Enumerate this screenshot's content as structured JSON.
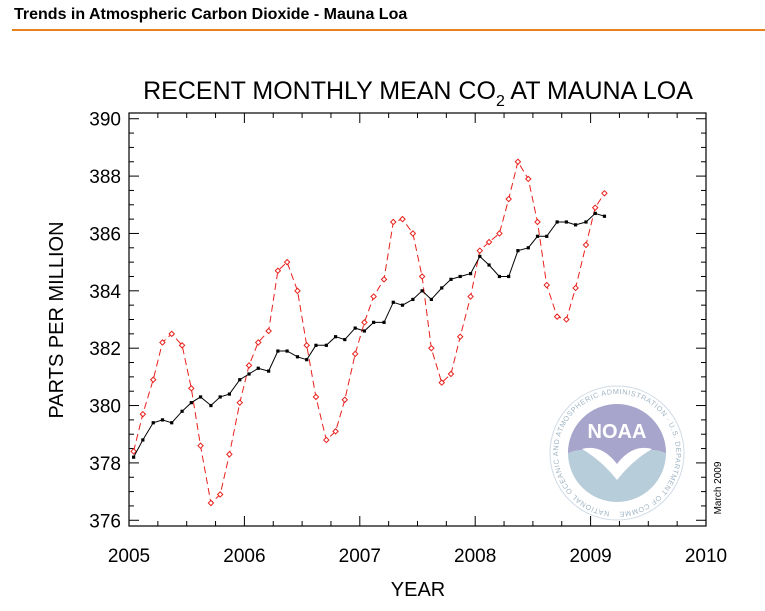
{
  "page": {
    "header_title": "Trends in Atmospheric Carbon Dioxide - Mauna Loa",
    "accent_color": "#e8821e"
  },
  "chart_data": {
    "type": "line",
    "title_main": "RECENT MONTHLY MEAN CO",
    "title_subscript": "2",
    "title_suffix": " AT MAUNA LOA",
    "xlabel": "YEAR",
    "ylabel": "PARTS PER MILLION",
    "xlim": [
      2005,
      2010
    ],
    "ylim": [
      375.8,
      390.2
    ],
    "x_ticks": [
      2005,
      2006,
      2007,
      2008,
      2009,
      2010
    ],
    "x_tick_labels": [
      "2005",
      "2006",
      "2007",
      "2008",
      "2009",
      "2010"
    ],
    "y_ticks": [
      376,
      378,
      380,
      382,
      384,
      386,
      388,
      390
    ],
    "y_tick_labels": [
      "376",
      "378",
      "380",
      "382",
      "384",
      "386",
      "388",
      "390"
    ],
    "annotation": "March 2009",
    "logo_text": "NOAA",
    "logo_ring_text": "NATIONAL OCEANIC AND ATMOSPHERIC ADMINISTRATION · U.S. DEPARTMENT OF COMMERCE",
    "series": [
      {
        "style": "monthly-mean",
        "color": "#e8201c",
        "line": "dashed",
        "marker": "diamond",
        "x": [
          2005.04,
          2005.12,
          2005.21,
          2005.29,
          2005.37,
          2005.46,
          2005.54,
          2005.62,
          2005.71,
          2005.79,
          2005.87,
          2005.96,
          2006.04,
          2006.12,
          2006.21,
          2006.29,
          2006.37,
          2006.46,
          2006.54,
          2006.62,
          2006.71,
          2006.79,
          2006.87,
          2006.96,
          2007.04,
          2007.12,
          2007.21,
          2007.29,
          2007.37,
          2007.46,
          2007.54,
          2007.62,
          2007.71,
          2007.79,
          2007.87,
          2007.96,
          2008.04,
          2008.12,
          2008.21,
          2008.29,
          2008.37,
          2008.46,
          2008.54,
          2008.62,
          2008.71,
          2008.79,
          2008.87,
          2008.96,
          2009.04,
          2009.12
        ],
        "y": [
          378.4,
          379.7,
          380.9,
          382.2,
          382.5,
          382.1,
          380.6,
          378.6,
          376.6,
          376.9,
          378.3,
          380.1,
          381.4,
          382.2,
          382.6,
          384.7,
          385.0,
          384.0,
          382.1,
          380.3,
          378.8,
          379.1,
          380.2,
          381.8,
          382.9,
          383.8,
          384.4,
          386.4,
          386.5,
          386.0,
          384.5,
          382.0,
          380.8,
          381.1,
          382.4,
          383.8,
          385.4,
          385.7,
          386.0,
          387.2,
          388.5,
          387.9,
          386.4,
          384.2,
          383.1,
          383.0,
          384.1,
          385.6,
          386.9,
          387.4
        ]
      },
      {
        "style": "seasonally-corrected",
        "color": "#000000",
        "line": "solid",
        "marker": "square",
        "x": [
          2005.04,
          2005.12,
          2005.21,
          2005.29,
          2005.37,
          2005.46,
          2005.54,
          2005.62,
          2005.71,
          2005.79,
          2005.87,
          2005.96,
          2006.04,
          2006.12,
          2006.21,
          2006.29,
          2006.37,
          2006.46,
          2006.54,
          2006.62,
          2006.71,
          2006.79,
          2006.87,
          2006.96,
          2007.04,
          2007.12,
          2007.21,
          2007.29,
          2007.37,
          2007.46,
          2007.54,
          2007.62,
          2007.71,
          2007.79,
          2007.87,
          2007.96,
          2008.04,
          2008.12,
          2008.21,
          2008.29,
          2008.37,
          2008.46,
          2008.54,
          2008.62,
          2008.71,
          2008.79,
          2008.87,
          2008.96,
          2009.04,
          2009.12
        ],
        "y": [
          378.2,
          378.8,
          379.4,
          379.5,
          379.4,
          379.8,
          380.1,
          380.3,
          380.0,
          380.3,
          380.4,
          380.9,
          381.1,
          381.3,
          381.2,
          381.9,
          381.9,
          381.7,
          381.6,
          382.1,
          382.1,
          382.4,
          382.3,
          382.7,
          382.6,
          382.9,
          382.9,
          383.6,
          383.5,
          383.7,
          384.0,
          383.7,
          384.1,
          384.4,
          384.5,
          384.6,
          385.2,
          384.9,
          384.5,
          384.5,
          385.4,
          385.5,
          385.9,
          385.9,
          386.4,
          386.4,
          386.3,
          386.4,
          386.7,
          386.6
        ]
      }
    ]
  }
}
